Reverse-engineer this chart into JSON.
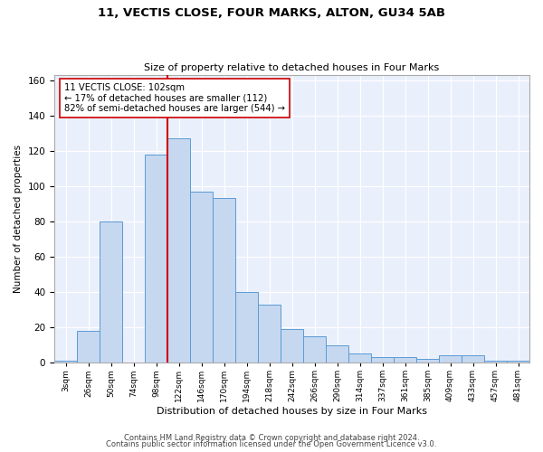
{
  "title1": "11, VECTIS CLOSE, FOUR MARKS, ALTON, GU34 5AB",
  "title2": "Size of property relative to detached houses in Four Marks",
  "xlabel": "Distribution of detached houses by size in Four Marks",
  "ylabel": "Number of detached properties",
  "categories": [
    "3sqm",
    "26sqm",
    "50sqm",
    "74sqm",
    "98sqm",
    "122sqm",
    "146sqm",
    "170sqm",
    "194sqm",
    "218sqm",
    "242sqm",
    "266sqm",
    "290sqm",
    "314sqm",
    "337sqm",
    "361sqm",
    "385sqm",
    "409sqm",
    "433sqm",
    "457sqm",
    "481sqm"
  ],
  "values": [
    1,
    18,
    80,
    0,
    118,
    127,
    97,
    93,
    40,
    33,
    19,
    15,
    10,
    5,
    3,
    3,
    2,
    4,
    4,
    1,
    1
  ],
  "bar_color": "#c5d8f0",
  "bar_edge_color": "#5b9bd5",
  "bg_color": "#eaf0fb",
  "grid_color": "#ffffff",
  "vline_x_idx": 4.5,
  "vline_color": "#cc0000",
  "annotation_text": "11 VECTIS CLOSE: 102sqm\n← 17% of detached houses are smaller (112)\n82% of semi-detached houses are larger (544) →",
  "ann_box_color": "#ffffff",
  "ann_box_edge": "#cc0000",
  "ylim": [
    0,
    163
  ],
  "yticks": [
    0,
    20,
    40,
    60,
    80,
    100,
    120,
    140,
    160
  ],
  "footer1": "Contains HM Land Registry data © Crown copyright and database right 2024.",
  "footer2": "Contains public sector information licensed under the Open Government Licence v3.0."
}
